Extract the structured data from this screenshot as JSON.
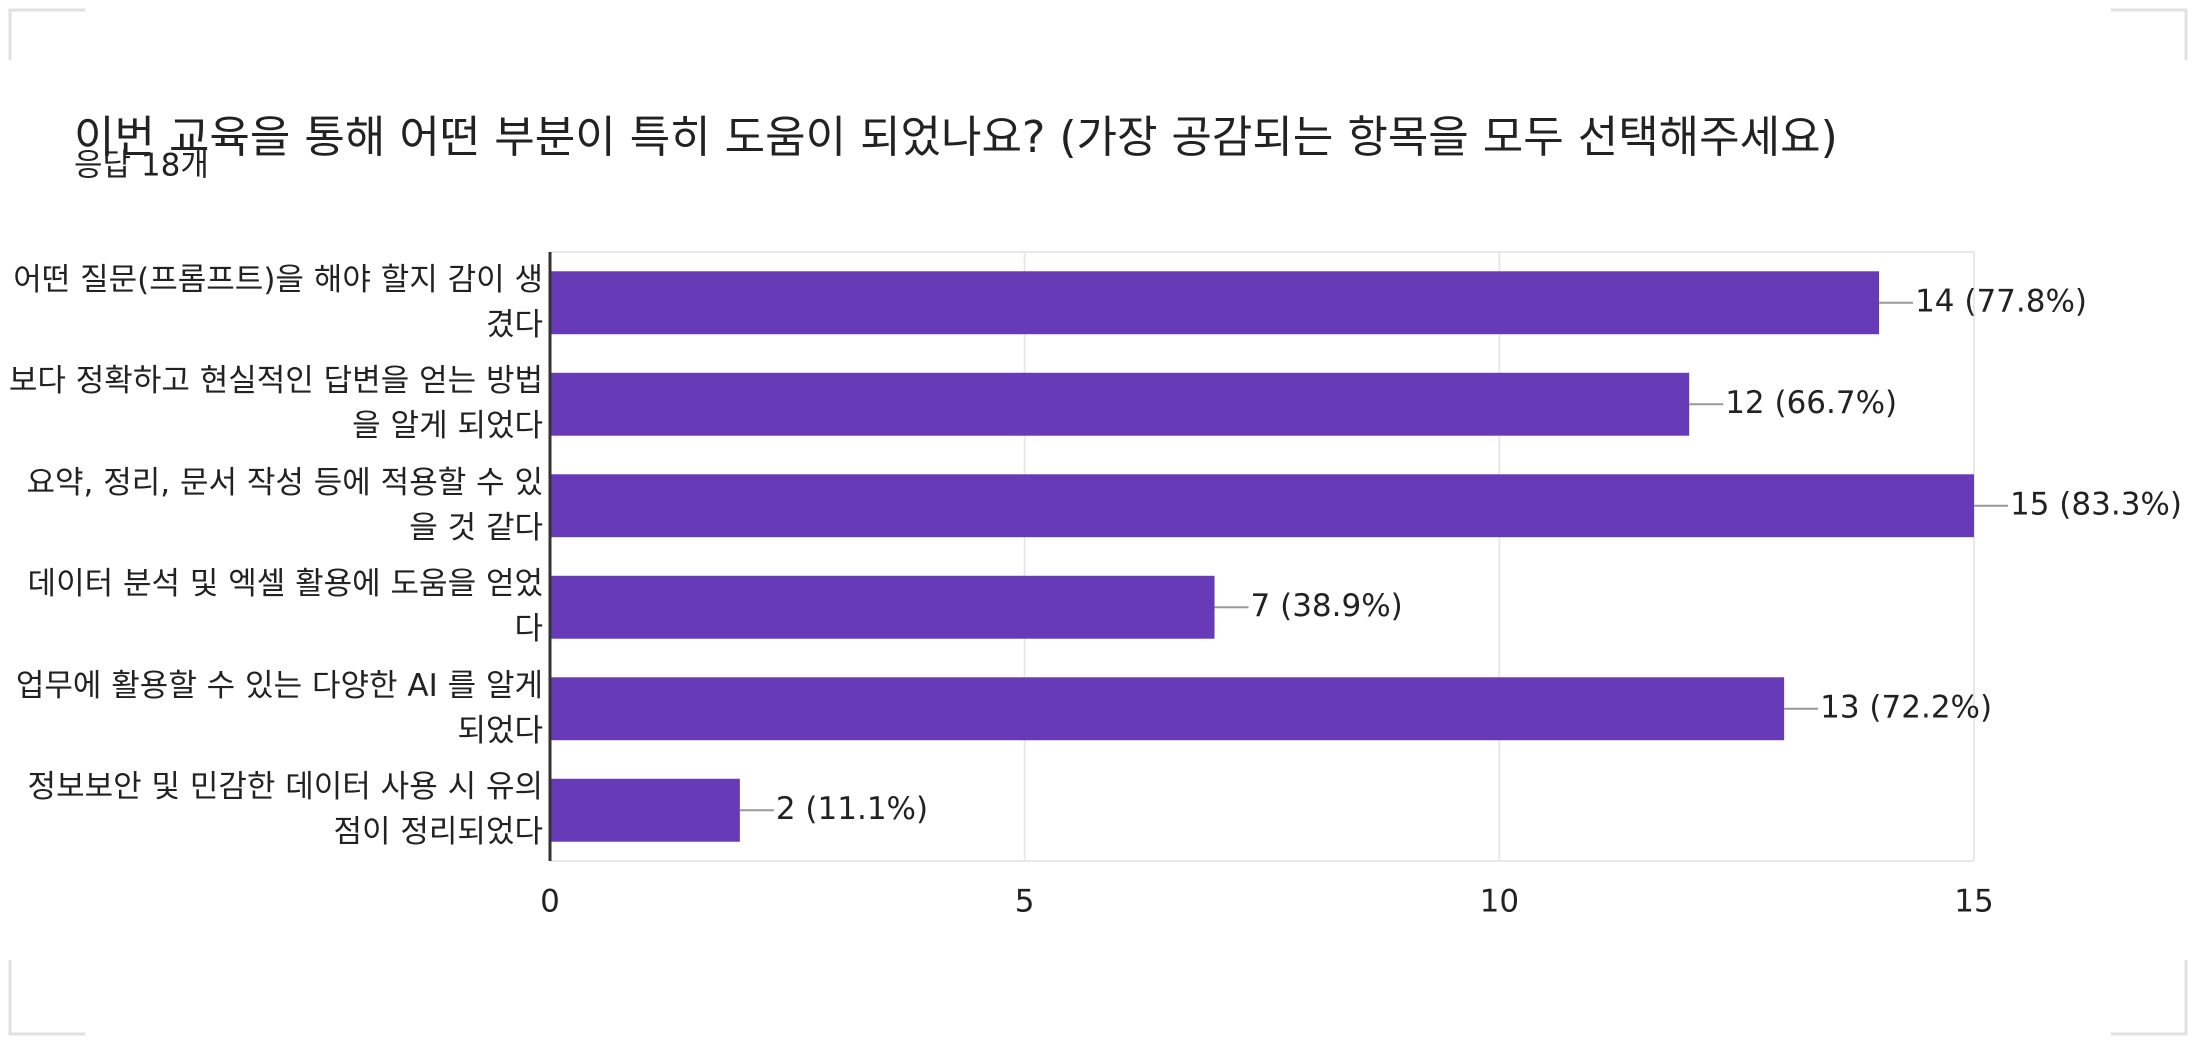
{
  "chart_data": {
    "type": "bar",
    "orientation": "horizontal",
    "title": "이번 교육을 통해 어떤 부분이 특히 도움이 되었나요? (가장 공감되는 항목을 모두 선택해주세요)",
    "subtitle": "응답 18개",
    "categories": [
      "어떤 질문(프롬프트)을 해야 할지 감이 생겼다",
      "보다 정확하고 현실적인 답변을 얻는 방법을 알게 되었다",
      "요약, 정리, 문서 작성 등에 적용할 수 있을 것 같다",
      "데이터 분석 및 엑셀 활용에 도움을 얻었다",
      "업무에 활용할 수 있는 다양한 AI 를 알게 되었다",
      "정보보안 및 민감한 데이터 사용 시 유의점이 정리되었다"
    ],
    "values": [
      14,
      12,
      15,
      7,
      13,
      2
    ],
    "value_labels": [
      "14 (77.8%)",
      "12 (66.7%)",
      "15 (83.3%)",
      "7 (38.9%)",
      "13 (72.2%)",
      "2 (11.1%)"
    ],
    "color": "#673ab7",
    "xlim": [
      0,
      15
    ],
    "xticks": [
      0,
      5,
      10,
      15
    ],
    "grid": true
  }
}
